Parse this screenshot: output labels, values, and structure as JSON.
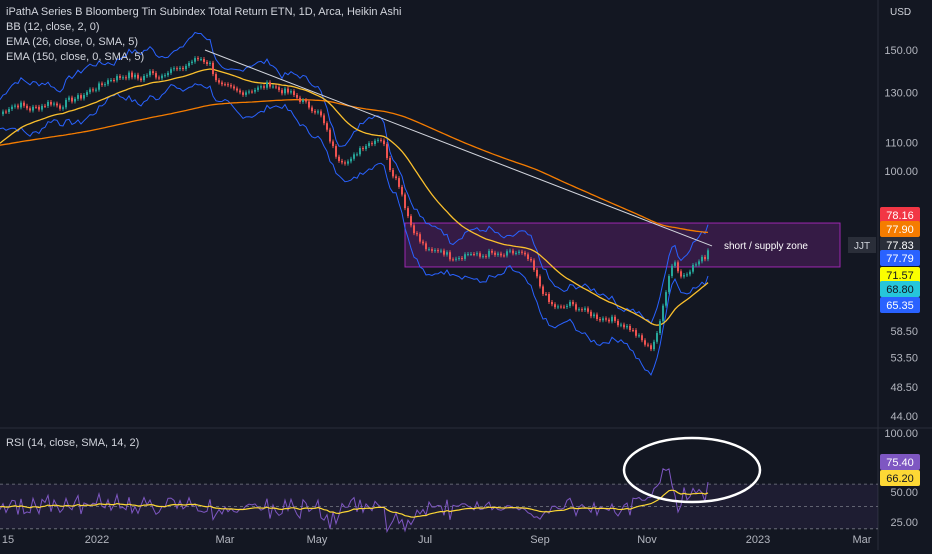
{
  "header": {
    "title": "iPathA Series B Bloomberg Tin Subindex Total Return ETN, 1D, Arca, Heikin Ashi",
    "indicators": [
      "BB (12, close, 2, 0)",
      "EMA (26, close, 0, SMA, 5)",
      "EMA (150, close, 0, SMA, 5)"
    ],
    "currency": "USD"
  },
  "rsi": {
    "label": "RSI (14, close, SMA, 14, 2)"
  },
  "colors": {
    "background": "#131722",
    "up": "#26a69a",
    "down": "#ef5350",
    "bb": "#2962ff",
    "ema26": "#fbc02d",
    "ema150": "#f57c00",
    "trendline": "#d1d4dc",
    "zone": "#9c27b0",
    "rsi": "#7e57c2",
    "rsi_ma": "#fdd835"
  },
  "chart_data": {
    "type": "candlestick",
    "x_axis": {
      "ticks": [
        "15",
        "2022",
        "Mar",
        "May",
        "Jul",
        "Sep",
        "Nov",
        "2023",
        "Mar"
      ]
    },
    "y_axis": {
      "ticks": [
        150.0,
        130.0,
        110.0,
        100.0,
        44.0
      ],
      "tick_labels": [
        "150.00",
        "130.00",
        "110.00",
        "100.00",
        "44.00"
      ],
      "scale": "log"
    },
    "price_labels": [
      {
        "text": "78.16",
        "color": "#f23645",
        "value": 78.16
      },
      {
        "text": "77.90",
        "color": "#f57c00",
        "value": 77.9
      },
      {
        "text": "77.83",
        "color": "#2a2e39",
        "value": 77.83,
        "ticker": "JJT"
      },
      {
        "text": "77.79",
        "color": "#2962ff",
        "value": 77.79
      },
      {
        "text": "71.57",
        "color": "#fbff00",
        "value": 71.57
      },
      {
        "text": "68.80",
        "color": "#26c6da",
        "value": 68.8
      },
      {
        "text": "65.35",
        "color": "#2962ff",
        "value": 65.35
      },
      {
        "text": "58.50",
        "color": "",
        "value": 58.5
      },
      {
        "text": "53.50",
        "color": "",
        "value": 53.5
      },
      {
        "text": "48.50",
        "color": "",
        "value": 48.5
      }
    ],
    "zone": {
      "label": "short / supply zone",
      "top": 84.0,
      "bottom": 72.5
    },
    "trendline": {
      "from": {
        "x": "Mar",
        "y": 150.0
      },
      "to": {
        "x": "Dec",
        "y": 77.8
      }
    },
    "rsi_axis": {
      "ticks": [
        "100.00",
        "50.00",
        "25.00"
      ],
      "labels": [
        {
          "text": "75.40",
          "color": "#7e57c2",
          "value": 75.4
        },
        {
          "text": "66.20",
          "color": "#fdd835",
          "value": 66.2
        }
      ]
    },
    "series": [
      {
        "name": "close",
        "points": [
          [
            0,
            121
          ],
          [
            10,
            124
          ],
          [
            20,
            125
          ],
          [
            30,
            123
          ],
          [
            40,
            124
          ],
          [
            50,
            126
          ],
          [
            60,
            124
          ],
          [
            70,
            127
          ],
          [
            80,
            128
          ],
          [
            90,
            131
          ],
          [
            100,
            133
          ],
          [
            110,
            136
          ],
          [
            120,
            137
          ],
          [
            130,
            138
          ],
          [
            140,
            136
          ],
          [
            150,
            139
          ],
          [
            160,
            137
          ],
          [
            170,
            141
          ],
          [
            180,
            140
          ],
          [
            190,
            144
          ],
          [
            200,
            146
          ],
          [
            210,
            143
          ],
          [
            215,
            137
          ],
          [
            220,
            133
          ],
          [
            230,
            132
          ],
          [
            240,
            130
          ],
          [
            250,
            131
          ],
          [
            260,
            132
          ],
          [
            270,
            134
          ],
          [
            280,
            131
          ],
          [
            290,
            130
          ],
          [
            300,
            127
          ],
          [
            310,
            124
          ],
          [
            320,
            121
          ],
          [
            325,
            116
          ],
          [
            330,
            111
          ],
          [
            335,
            106
          ],
          [
            340,
            104
          ],
          [
            350,
            103
          ],
          [
            360,
            108
          ],
          [
            370,
            110
          ],
          [
            380,
            112
          ],
          [
            385,
            108
          ],
          [
            390,
            101
          ],
          [
            400,
            95
          ],
          [
            405,
            89
          ],
          [
            410,
            84
          ],
          [
            420,
            79
          ],
          [
            430,
            76
          ],
          [
            440,
            77
          ],
          [
            450,
            75
          ],
          [
            460,
            75
          ],
          [
            470,
            76
          ],
          [
            480,
            75
          ],
          [
            490,
            76
          ],
          [
            500,
            75
          ],
          [
            510,
            76
          ],
          [
            520,
            76
          ],
          [
            530,
            74
          ],
          [
            540,
            68
          ],
          [
            550,
            64
          ],
          [
            560,
            63
          ],
          [
            570,
            64
          ],
          [
            580,
            63
          ],
          [
            590,
            62
          ],
          [
            600,
            61
          ],
          [
            610,
            61
          ],
          [
            620,
            60
          ],
          [
            630,
            59
          ],
          [
            640,
            57
          ],
          [
            650,
            55
          ],
          [
            655,
            57
          ],
          [
            660,
            60
          ],
          [
            665,
            66
          ],
          [
            670,
            72
          ],
          [
            675,
            74
          ],
          [
            680,
            70
          ],
          [
            690,
            72
          ],
          [
            700,
            74
          ],
          [
            705,
            75
          ],
          [
            710,
            78
          ]
        ]
      }
    ]
  }
}
